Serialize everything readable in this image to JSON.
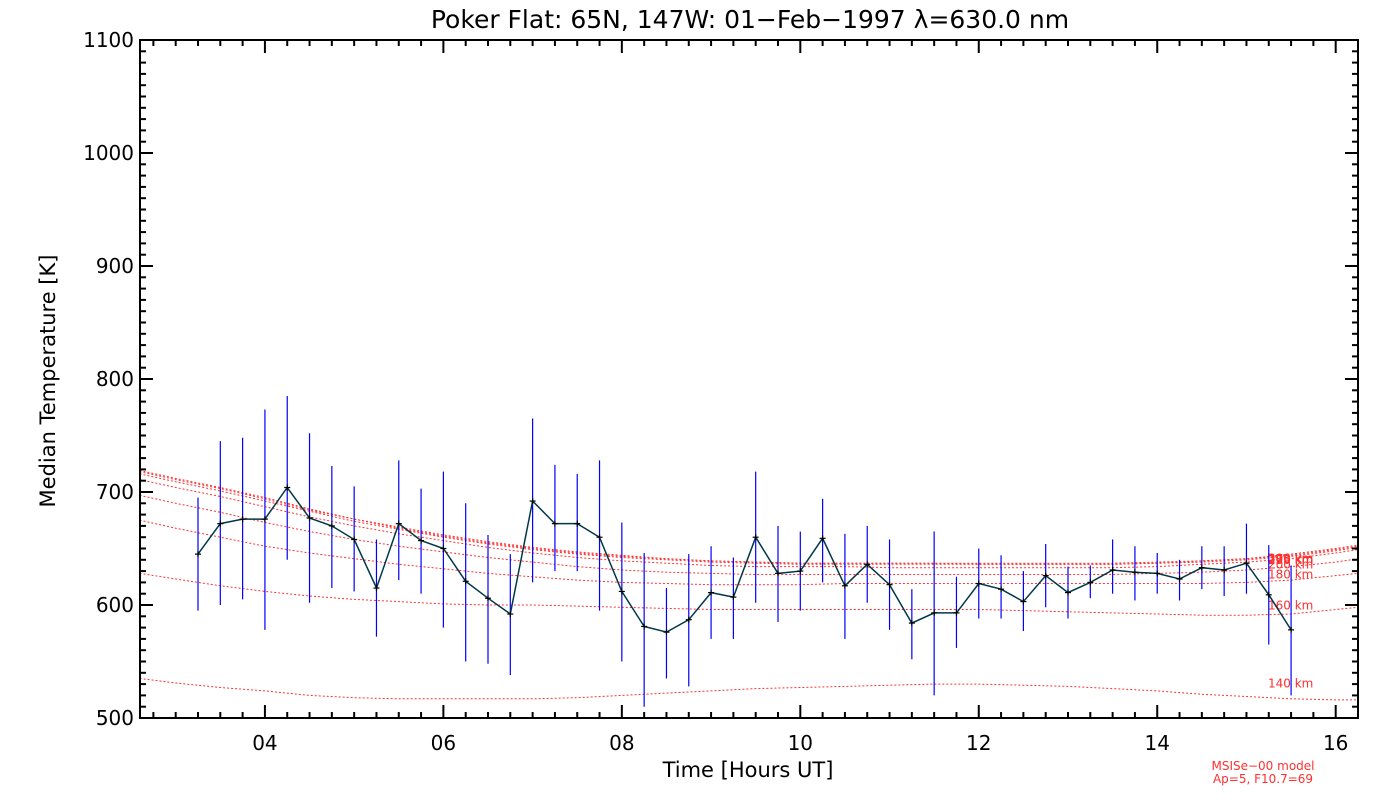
{
  "chart_data": {
    "type": "line",
    "title": "Poker Flat: 65N, 147W: 01−Feb−1997 λ=630.0 nm",
    "xlabel": "Time [Hours UT]",
    "ylabel": "Median Temperature [K]",
    "xlim": [
      2.6,
      16.25
    ],
    "ylim": [
      500,
      1100
    ],
    "x_ticks": [
      4,
      6,
      8,
      10,
      12,
      14,
      16
    ],
    "x_tick_labels": [
      "04",
      "06",
      "08",
      "10",
      "12",
      "14",
      "16"
    ],
    "y_ticks": [
      500,
      600,
      700,
      800,
      900,
      1000,
      1100
    ],
    "y_tick_labels": [
      "500",
      "600",
      "700",
      "800",
      "900",
      "1000",
      "1100"
    ],
    "grid": false,
    "colors": {
      "measurement": "#00384a",
      "error_bar": "#0000ff",
      "model": "#ff3030"
    },
    "series": [
      {
        "x": [
          3.25,
          3.5,
          3.75,
          4.0,
          4.25,
          4.5,
          4.75,
          5.0,
          5.25,
          5.5,
          5.75,
          6.0,
          6.25,
          6.5,
          6.75,
          7.0,
          7.25,
          7.5,
          7.75,
          8.0,
          8.25,
          8.5,
          8.75,
          9.0,
          9.25,
          9.5,
          9.75,
          10.0,
          10.25,
          10.5,
          10.75,
          11.0,
          11.25,
          11.5,
          11.75,
          12.0,
          12.25,
          12.5,
          12.75,
          13.0,
          13.25,
          13.5,
          13.75,
          14.0,
          14.25,
          14.5,
          14.75,
          15.0,
          15.25,
          15.5
        ],
        "values": [
          645,
          672,
          676,
          676,
          704,
          677,
          670,
          658,
          615,
          672,
          657,
          650,
          621,
          606,
          592,
          692,
          672,
          672,
          660,
          612,
          581,
          576,
          587,
          611,
          607,
          660,
          628,
          630,
          659,
          617,
          636,
          618,
          584,
          593,
          593,
          619,
          614,
          603,
          626,
          611,
          620,
          631,
          629,
          628,
          623,
          633,
          631,
          637,
          609,
          578
        ],
        "err_low": [
          595,
          600,
          605,
          578,
          640,
          602,
          615,
          612,
          572,
          622,
          610,
          580,
          550,
          548,
          538,
          620,
          630,
          630,
          595,
          550,
          510,
          535,
          528,
          570,
          570,
          602,
          585,
          595,
          620,
          570,
          602,
          578,
          552,
          520,
          562,
          588,
          588,
          577,
          598,
          588,
          606,
          610,
          604,
          610,
          604,
          614,
          608,
          610,
          565,
          520
        ],
        "err_high": [
          695,
          745,
          748,
          773,
          785,
          752,
          723,
          705,
          658,
          728,
          703,
          718,
          690,
          662,
          645,
          765,
          724,
          716,
          728,
          673,
          646,
          615,
          645,
          652,
          642,
          718,
          670,
          665,
          694,
          663,
          670,
          658,
          614,
          665,
          625,
          650,
          644,
          630,
          654,
          634,
          635,
          658,
          652,
          646,
          640,
          652,
          652,
          672,
          653,
          635
        ]
      }
    ],
    "model": {
      "x": [
        2.6,
        3.0,
        3.5,
        4.0,
        4.5,
        5.0,
        5.5,
        6.0,
        6.5,
        7.0,
        7.5,
        8.0,
        8.5,
        9.0,
        9.5,
        10.0,
        10.5,
        11.0,
        11.5,
        12.0,
        12.5,
        13.0,
        13.5,
        14.0,
        14.5,
        15.0,
        15.5,
        16.0,
        16.25
      ],
      "altitudes": [
        {
          "label": "140 km",
          "values": [
            535,
            531,
            527,
            524,
            520,
            518,
            517,
            517,
            517,
            517,
            518,
            520,
            522,
            524,
            526,
            527,
            528,
            529,
            530,
            530,
            529,
            528,
            526,
            524,
            521,
            519,
            517,
            516,
            516
          ]
        },
        {
          "label": "160 km",
          "values": [
            628,
            623,
            617,
            612,
            608,
            605,
            603,
            601,
            600,
            600,
            599,
            598,
            597,
            596,
            596,
            596,
            596,
            596,
            596,
            596,
            595,
            594,
            593,
            592,
            591,
            591,
            592,
            596,
            598
          ]
        },
        {
          "label": "180 km",
          "values": [
            675,
            668,
            660,
            652,
            646,
            641,
            636,
            632,
            628,
            625,
            622,
            620,
            619,
            618,
            618,
            618,
            619,
            619,
            619,
            619,
            619,
            619,
            619,
            619,
            619,
            620,
            622,
            626,
            628
          ]
        },
        {
          "label": "200 km",
          "values": [
            697,
            690,
            682,
            673,
            665,
            658,
            652,
            647,
            642,
            638,
            634,
            631,
            629,
            628,
            627,
            627,
            627,
            627,
            627,
            627,
            627,
            627,
            627,
            628,
            629,
            631,
            634,
            638,
            641
          ]
        },
        {
          "label": "225 km",
          "values": [
            711,
            704,
            696,
            687,
            678,
            670,
            663,
            657,
            651,
            646,
            642,
            639,
            637,
            635,
            634,
            634,
            634,
            633,
            633,
            633,
            633,
            633,
            633,
            634,
            636,
            638,
            641,
            646,
            649
          ]
        },
        {
          "label": "250 km",
          "values": [
            716,
            709,
            701,
            692,
            683,
            674,
            667,
            660,
            654,
            649,
            645,
            642,
            640,
            638,
            637,
            636,
            636,
            636,
            636,
            636,
            636,
            636,
            636,
            637,
            638,
            640,
            643,
            648,
            651
          ]
        },
        {
          "label": "275 km",
          "values": [
            718,
            711,
            703,
            694,
            684,
            676,
            668,
            661,
            655,
            650,
            646,
            643,
            641,
            639,
            638,
            637,
            637,
            637,
            637,
            636,
            636,
            636,
            636,
            637,
            639,
            641,
            644,
            649,
            652
          ]
        },
        {
          "label": "300 km",
          "values": [
            719,
            712,
            704,
            695,
            685,
            676,
            669,
            662,
            656,
            651,
            647,
            644,
            641,
            639,
            638,
            637,
            637,
            637,
            637,
            637,
            637,
            637,
            637,
            638,
            639,
            641,
            645,
            650,
            653
          ]
        }
      ]
    },
    "annotations": [
      "MSISe−00 model",
      "Ap=5, F10.7=69"
    ]
  }
}
